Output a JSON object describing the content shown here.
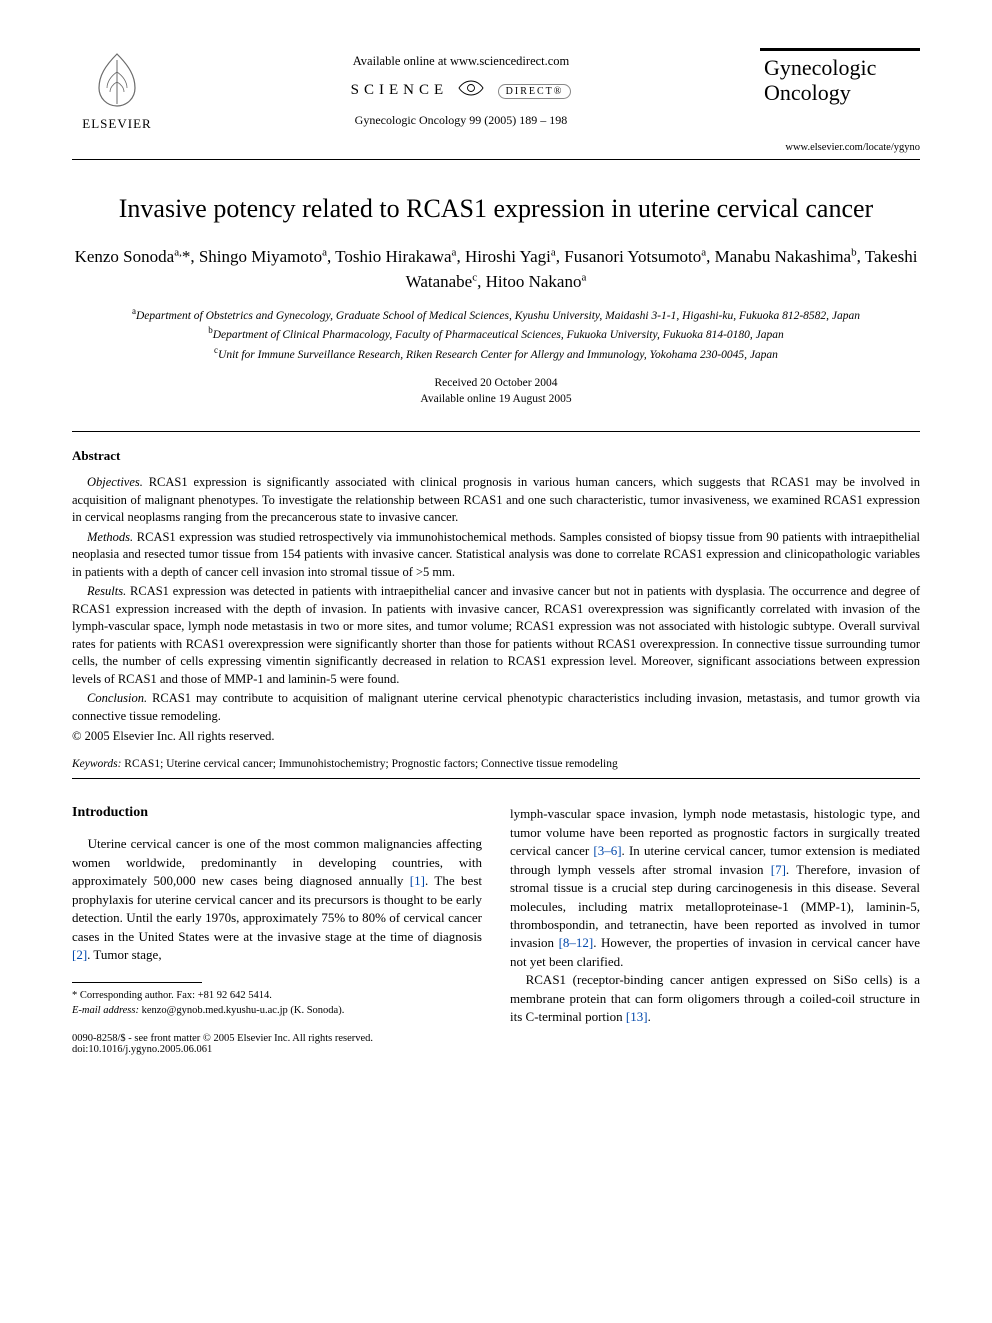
{
  "header": {
    "elsevier_label": "ELSEVIER",
    "available_line": "Available online at www.sciencedirect.com",
    "sd_logo_left": "SCIENCE",
    "sd_logo_right": "DIRECT®",
    "citation": "Gynecologic Oncology 99 (2005) 189 – 198",
    "journal_line1": "Gynecologic",
    "journal_line2": "Oncology",
    "journal_url": "www.elsevier.com/locate/ygyno"
  },
  "title": "Invasive potency related to RCAS1 expression in uterine cervical cancer",
  "authors_html": "Kenzo Sonoda<sup>a,</sup>*, Shingo Miyamoto<sup>a</sup>, Toshio Hirakawa<sup>a</sup>, Hiroshi Yagi<sup>a</sup>, Fusanori Yotsumoto<sup>a</sup>, Manabu Nakashima<sup>b</sup>, Takeshi Watanabe<sup>c</sup>, Hitoo Nakano<sup>a</sup>",
  "affiliations": {
    "a": "Department of Obstetrics and Gynecology, Graduate School of Medical Sciences, Kyushu University, Maidashi 3-1-1, Higashi-ku, Fukuoka 812-8582, Japan",
    "b": "Department of Clinical Pharmacology, Faculty of Pharmaceutical Sciences, Fukuoka University, Fukuoka 814-0180, Japan",
    "c": "Unit for Immune Surveillance Research, Riken Research Center for Allergy and Immunology, Yokohama 230-0045, Japan"
  },
  "dates": {
    "received": "Received 20 October 2004",
    "online": "Available online 19 August 2005"
  },
  "abstract": {
    "label": "Abstract",
    "objectives_label": "Objectives.",
    "objectives": "RCAS1 expression is significantly associated with clinical prognosis in various human cancers, which suggests that RCAS1 may be involved in acquisition of malignant phenotypes. To investigate the relationship between RCAS1 and one such characteristic, tumor invasiveness, we examined RCAS1 expression in cervical neoplasms ranging from the precancerous state to invasive cancer.",
    "methods_label": "Methods.",
    "methods": "RCAS1 expression was studied retrospectively via immunohistochemical methods. Samples consisted of biopsy tissue from 90 patients with intraepithelial neoplasia and resected tumor tissue from 154 patients with invasive cancer. Statistical analysis was done to correlate RCAS1 expression and clinicopathologic variables in patients with a depth of cancer cell invasion into stromal tissue of >5 mm.",
    "results_label": "Results.",
    "results": "RCAS1 expression was detected in patients with intraepithelial cancer and invasive cancer but not in patients with dysplasia. The occurrence and degree of RCAS1 expression increased with the depth of invasion. In patients with invasive cancer, RCAS1 overexpression was significantly correlated with invasion of the lymph-vascular space, lymph node metastasis in two or more sites, and tumor volume; RCAS1 expression was not associated with histologic subtype. Overall survival rates for patients with RCAS1 overexpression were significantly shorter than those for patients without RCAS1 overexpression. In connective tissue surrounding tumor cells, the number of cells expressing vimentin significantly decreased in relation to RCAS1 expression level. Moreover, significant associations between expression levels of RCAS1 and those of MMP-1 and laminin-5 were found.",
    "conclusion_label": "Conclusion.",
    "conclusion": "RCAS1 may contribute to acquisition of malignant uterine cervical phenotypic characteristics including invasion, metastasis, and tumor growth via connective tissue remodeling.",
    "copyright": "© 2005 Elsevier Inc. All rights reserved."
  },
  "keywords": {
    "label": "Keywords:",
    "text": "RCAS1; Uterine cervical cancer; Immunohistochemistry; Prognostic factors; Connective tissue remodeling"
  },
  "body": {
    "section_head": "Introduction",
    "col1_p1_a": "Uterine cervical cancer is one of the most common malignancies affecting women worldwide, predominantly in developing countries, with approximately 500,000 new cases being diagnosed annually ",
    "ref1": "[1]",
    "col1_p1_b": ". The best prophylaxis for uterine cervical cancer and its precursors is thought to be early detection. Until the early 1970s, approximately 75% to 80% of cervical cancer cases in the United States were at the invasive stage at the time of diagnosis ",
    "ref2": "[2]",
    "col1_p1_c": ". Tumor stage,",
    "col2_p1_a": "lymph-vascular space invasion, lymph node metastasis, histologic type, and tumor volume have been reported as prognostic factors in surgically treated cervical cancer ",
    "ref36": "[3–6]",
    "col2_p1_b": ". In uterine cervical cancer, tumor extension is mediated through lymph vessels after stromal invasion ",
    "ref7": "[7]",
    "col2_p1_c": ". Therefore, invasion of stromal tissue is a crucial step during carcinogenesis in this disease. Several molecules, including matrix metalloproteinase-1 (MMP-1), laminin-5, thrombospondin, and tetranectin, have been reported as involved in tumor invasion ",
    "ref812": "[8–12]",
    "col2_p1_d": ". However, the properties of invasion in cervical cancer have not yet been clarified.",
    "col2_p2_a": "RCAS1 (receptor-binding cancer antigen expressed on SiSo cells) is a membrane protein that can form oligomers through a coiled-coil structure in its C-terminal portion ",
    "ref13": "[13]",
    "col2_p2_b": "."
  },
  "footnotes": {
    "corr": "* Corresponding author. Fax: +81 92 642 5414.",
    "email_label": "E-mail address:",
    "email": "kenzo@gynob.med.kyushu-u.ac.jp (K. Sonoda)."
  },
  "footer": {
    "line1": "0090-8258/$ - see front matter © 2005 Elsevier Inc. All rights reserved.",
    "line2": "doi:10.1016/j.ygyno.2005.06.061"
  },
  "colors": {
    "link": "#0047ab",
    "text": "#000000",
    "bg": "#ffffff"
  }
}
